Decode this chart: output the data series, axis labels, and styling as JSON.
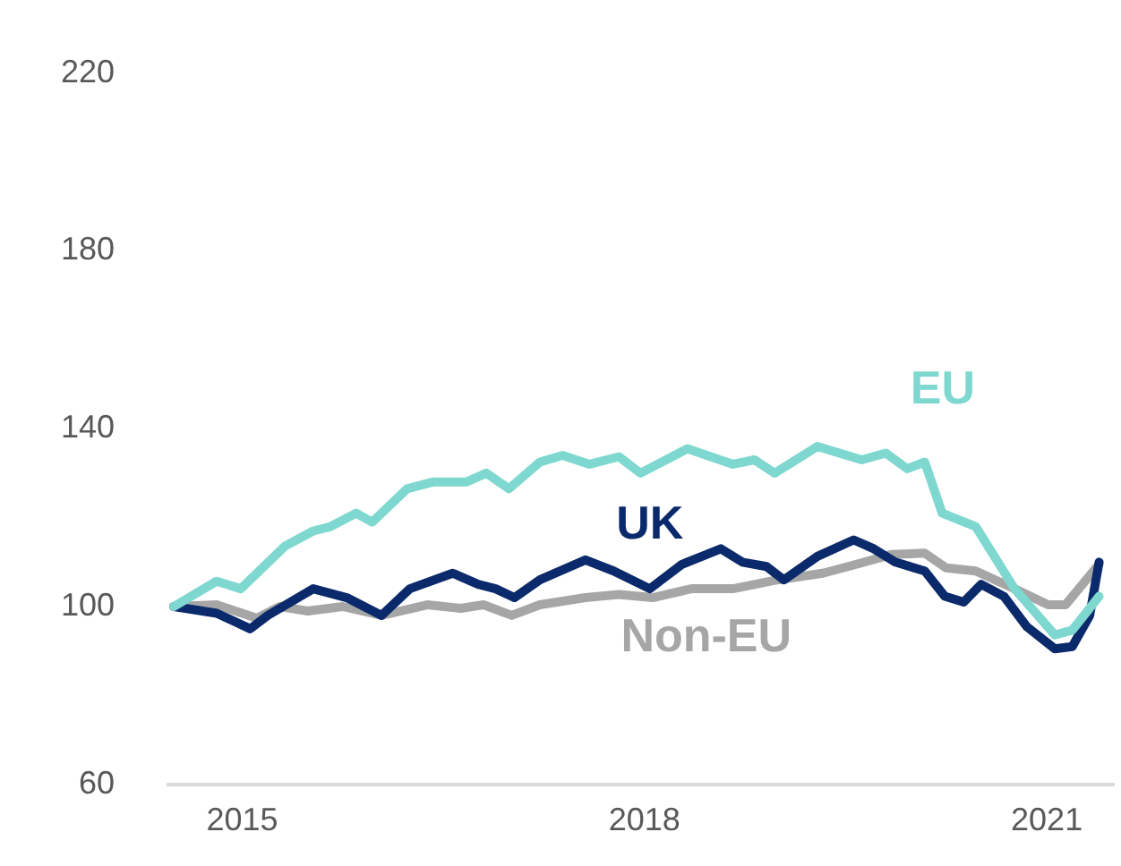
{
  "chart_data": {
    "type": "line",
    "xlim": [
      2014.45,
      2021.5
    ],
    "xticks": [
      2015,
      2018,
      2021
    ],
    "ylim": [
      60,
      220
    ],
    "yticks": [
      60,
      100,
      140,
      180,
      220
    ],
    "grid": false,
    "legend": false,
    "marker": "none",
    "line_style": "solid",
    "series": [
      {
        "name": "EU",
        "color": "#7ed8d0",
        "x": [
          2014.49,
          2014.81,
          2014.99,
          2015.32,
          2015.53,
          2015.66,
          2015.85,
          2015.97,
          2016.23,
          2016.42,
          2016.67,
          2016.82,
          2016.99,
          2017.22,
          2017.39,
          2017.59,
          2017.81,
          2017.97,
          2018.32,
          2018.66,
          2018.82,
          2018.97,
          2019.29,
          2019.62,
          2019.8,
          2019.96,
          2020.09,
          2020.22,
          2020.47,
          2020.76,
          2021.06,
          2021.19,
          2021.39
        ],
        "values": [
          100,
          105.7,
          104,
          113.6,
          117,
          118,
          121,
          119,
          126.5,
          128,
          128,
          130,
          126.5,
          132.5,
          134,
          132,
          133.7,
          130,
          135.5,
          132,
          133,
          130,
          136,
          133,
          134.5,
          131,
          132.5,
          121,
          118,
          104,
          93.6,
          94.7,
          102.3
        ]
      },
      {
        "name": "UK",
        "color": "#0b2a6b",
        "x": [
          2014.49,
          2014.81,
          2015.06,
          2015.19,
          2015.53,
          2015.78,
          2016.04,
          2016.25,
          2016.57,
          2016.76,
          2016.89,
          2017.03,
          2017.22,
          2017.56,
          2017.77,
          2018.04,
          2018.28,
          2018.57,
          2018.73,
          2018.91,
          2019.04,
          2019.29,
          2019.56,
          2019.71,
          2019.87,
          2020.09,
          2020.24,
          2020.38,
          2020.51,
          2020.68,
          2020.85,
          2021.06,
          2021.19,
          2021.32,
          2021.39
        ],
        "values": [
          100,
          98.5,
          95,
          98,
          104,
          102,
          98,
          104,
          107.5,
          105,
          104,
          102,
          106,
          110.5,
          108,
          104,
          109.5,
          113,
          110,
          109,
          106,
          111.3,
          115,
          113,
          110,
          108,
          102.3,
          101,
          105,
          102.3,
          95.5,
          90.5,
          91,
          98,
          110
        ]
      },
      {
        "name": "Non-EU",
        "color": "#a6a6a6",
        "x": [
          2014.49,
          2014.81,
          2015.11,
          2015.28,
          2015.49,
          2015.75,
          2016.04,
          2016.38,
          2016.63,
          2016.8,
          2017.01,
          2017.22,
          2017.56,
          2017.81,
          2018.06,
          2018.35,
          2018.66,
          2018.99,
          2019.33,
          2019.58,
          2019.84,
          2020.09,
          2020.25,
          2020.47,
          2020.76,
          2021.01,
          2021.14,
          2021.39
        ],
        "values": [
          100,
          100.4,
          97.4,
          100,
          99,
          100,
          98,
          100.4,
          99.6,
          100.4,
          98,
          100.4,
          102,
          102.7,
          102,
          104,
          104,
          106,
          107.5,
          109.5,
          111.7,
          112,
          108.7,
          108,
          104,
          100.4,
          100.4,
          109.5
        ]
      }
    ]
  }
}
